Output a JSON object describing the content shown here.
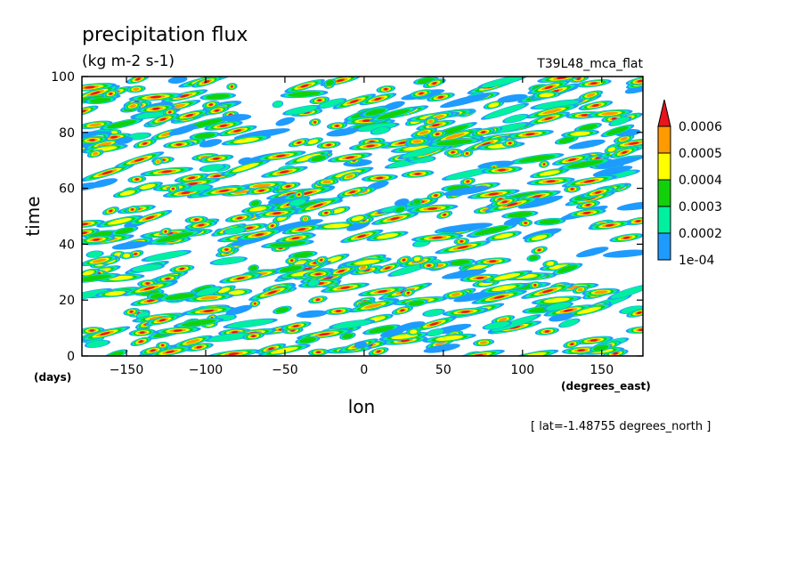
{
  "chart_data": {
    "type": "heatmap",
    "title": "precipitation flux",
    "units": "(kg m-2 s-1)",
    "dataset": "T39L48_mca_flat",
    "xlabel": "lon",
    "x_unit": "(degrees_east)",
    "ylabel": "time",
    "y_unit": "(days)",
    "xlim": [
      -178.125,
      176
    ],
    "ylim": [
      0,
      100
    ],
    "x_ticks": [
      -150,
      -100,
      -50,
      0,
      50,
      100,
      150
    ],
    "y_ticks": [
      0,
      20,
      40,
      60,
      80,
      100
    ],
    "annotation": "[ lat=-1.48755 degrees_north ]",
    "colorbar": {
      "levels": [
        "1e-04",
        "0.0002",
        "0.0003",
        "0.0004",
        "0.0005",
        "0.0006"
      ],
      "colors": [
        "#1e9bff",
        "#00f0a0",
        "#12d10a",
        "#ffff00",
        "#ff9a00",
        "#e8141c"
      ],
      "extend": "max"
    }
  }
}
